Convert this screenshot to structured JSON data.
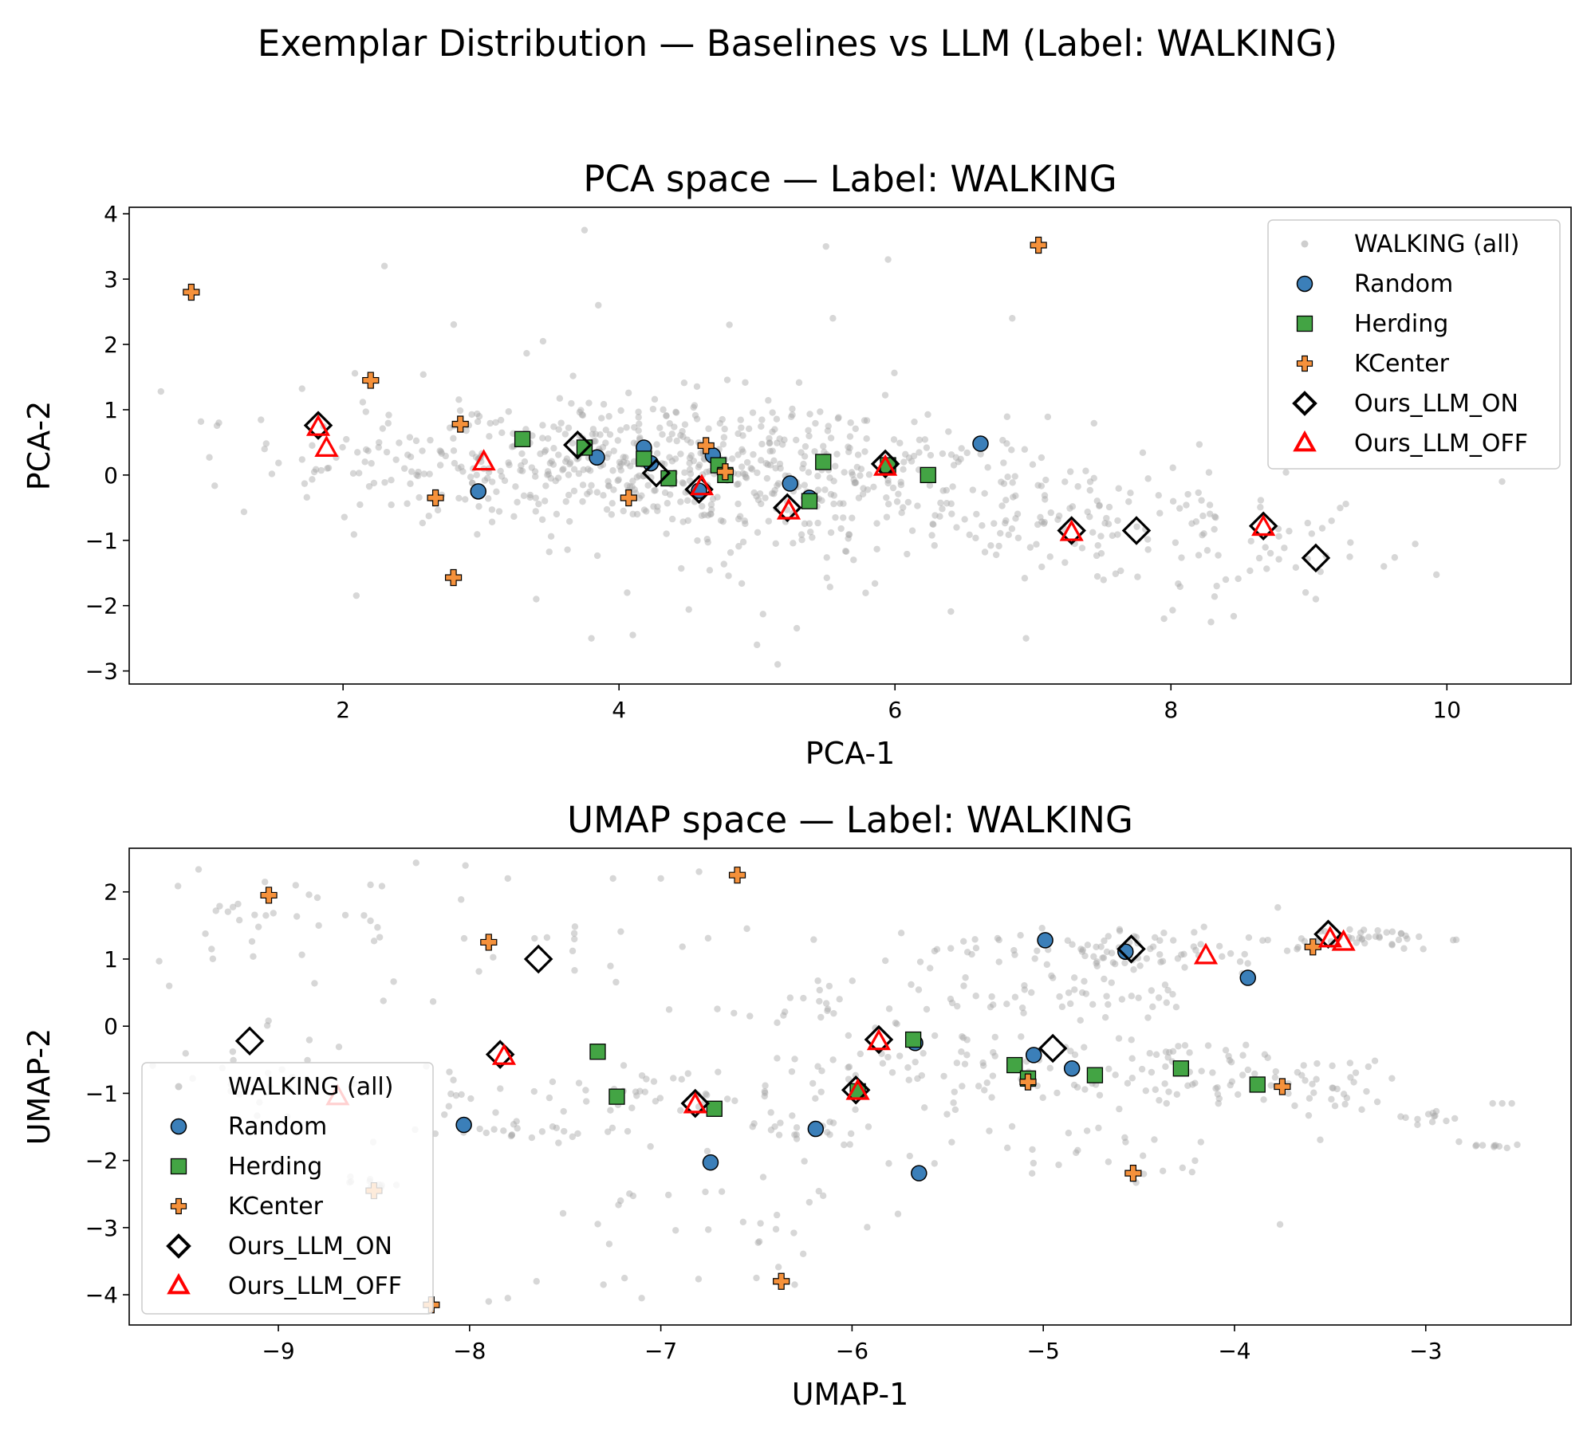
{
  "figure": {
    "suptitle": "Exemplar Distribution — Baselines vs LLM (Label: WALKING)"
  },
  "series_styles": {
    "WALKING (all)": {
      "color": "#a6a6a6",
      "marker": "circle-small"
    },
    "Random": {
      "color": "#3b7fb9",
      "marker": "circle"
    },
    "Herding": {
      "color": "#43a444",
      "marker": "square"
    },
    "KCenter": {
      "color": "#f5913b",
      "marker": "plus"
    },
    "Ours_LLM_ON": {
      "color": "#000000",
      "marker": "diamond-open"
    },
    "Ours_LLM_OFF": {
      "color": "#ff0000",
      "marker": "triangle-open"
    }
  },
  "chart_data": [
    {
      "type": "scatter",
      "title": "PCA space — Label: WALKING",
      "xlabel": "PCA-1",
      "ylabel": "PCA-2",
      "xlim": [
        0.45,
        10.9
      ],
      "ylim": [
        -3.2,
        4.1
      ],
      "xticks": [
        2,
        4,
        6,
        8,
        10
      ],
      "yticks": [
        -3,
        -2,
        -1,
        0,
        1,
        2,
        3,
        4
      ],
      "legend": {
        "position": "upper-right",
        "entries": [
          "WALKING (all)",
          "Random",
          "Herding",
          "KCenter",
          "Ours_LLM_ON",
          "Ours_LLM_OFF"
        ]
      },
      "background": {
        "name": "WALKING (all)",
        "clusters": [
          {
            "cx": 3.8,
            "cy": 0.25,
            "sx": 1.1,
            "sy": 0.5,
            "n": 420
          },
          {
            "cx": 5.5,
            "cy": -0.2,
            "sx": 0.9,
            "sy": 0.5,
            "n": 230
          },
          {
            "cx": 7.2,
            "cy": -0.75,
            "sx": 0.8,
            "sy": 0.5,
            "n": 110
          },
          {
            "cx": 8.8,
            "cy": -1.3,
            "sx": 0.5,
            "sy": 0.35,
            "n": 40
          },
          {
            "cx": 4.5,
            "cy": 0.0,
            "sx": 1.5,
            "sy": 1.3,
            "n": 60
          }
        ],
        "outliers": [
          [
            3.75,
            3.75
          ],
          [
            2.3,
            3.2
          ],
          [
            5.5,
            3.5
          ],
          [
            5.95,
            3.3
          ],
          [
            3.85,
            2.6
          ],
          [
            4.8,
            2.3
          ],
          [
            5.55,
            2.4
          ],
          [
            6.85,
            2.4
          ],
          [
            10.4,
            -0.1
          ],
          [
            1.1,
            0.8
          ],
          [
            5.0,
            -2.6
          ],
          [
            5.15,
            -2.9
          ],
          [
            4.1,
            -2.45
          ],
          [
            3.8,
            -2.5
          ],
          [
            6.95,
            -2.5
          ],
          [
            7.95,
            -2.2
          ],
          [
            9.05,
            -1.9
          ],
          [
            3.4,
            -1.9
          ]
        ]
      },
      "series": [
        {
          "name": "Random",
          "x": [
            2.98,
            3.84,
            4.18,
            4.23,
            4.68,
            4.58,
            5.24,
            5.38,
            6.62
          ],
          "y": [
            -0.25,
            0.27,
            0.42,
            0.18,
            0.3,
            -0.24,
            -0.13,
            -0.35,
            0.48
          ]
        },
        {
          "name": "Herding",
          "x": [
            3.3,
            3.75,
            4.18,
            4.36,
            4.72,
            4.77,
            5.38,
            5.48,
            5.95,
            6.24
          ],
          "y": [
            0.55,
            0.42,
            0.25,
            -0.05,
            0.15,
            0.0,
            -0.4,
            0.2,
            0.15,
            0.0
          ]
        },
        {
          "name": "KCenter",
          "x": [
            0.9,
            2.2,
            2.85,
            2.67,
            2.8,
            4.07,
            4.63,
            4.77,
            7.04
          ],
          "y": [
            2.8,
            1.45,
            0.78,
            -0.35,
            -1.57,
            -0.35,
            0.45,
            0.05,
            3.52
          ]
        },
        {
          "name": "Ours_LLM_ON",
          "x": [
            1.82,
            3.7,
            4.27,
            4.58,
            5.22,
            5.93,
            7.28,
            7.75,
            8.67,
            9.05
          ],
          "y": [
            0.76,
            0.46,
            0.03,
            -0.22,
            -0.5,
            0.17,
            -0.85,
            -0.85,
            -0.78,
            -1.27
          ]
        },
        {
          "name": "Ours_LLM_OFF",
          "x": [
            1.82,
            1.88,
            3.02,
            4.6,
            5.23,
            5.93,
            7.28,
            8.67
          ],
          "y": [
            0.73,
            0.41,
            0.2,
            -0.18,
            -0.55,
            0.12,
            -0.88,
            -0.8
          ]
        }
      ]
    },
    {
      "type": "scatter",
      "title": "UMAP space — Label: WALKING",
      "xlabel": "UMAP-1",
      "ylabel": "UMAP-2",
      "xlim": [
        -9.78,
        -2.24
      ],
      "ylim": [
        -4.45,
        2.65
      ],
      "xticks": [
        -9,
        -8,
        -7,
        -6,
        -5,
        -4,
        -3
      ],
      "yticks": [
        -4,
        -3,
        -2,
        -1,
        0,
        1,
        2
      ],
      "tick_labels_x": [
        "−9",
        "−8",
        "−7",
        "−6",
        "−5",
        "−4",
        "−3"
      ],
      "tick_labels_y": [
        "−4",
        "−3",
        "−2",
        "−1",
        "0",
        "1",
        "2"
      ],
      "legend": {
        "position": "lower-left",
        "entries": [
          "WALKING (all)",
          "Random",
          "Herding",
          "KCenter",
          "Ours_LLM_ON",
          "Ours_LLM_OFF"
        ]
      },
      "background": {
        "name": "WALKING (all)",
        "clusters": [
          {
            "cx": -4.6,
            "cy": 1.15,
            "sx": 0.5,
            "sy": 0.18,
            "n": 90
          },
          {
            "cx": -3.3,
            "cy": 1.3,
            "sx": 0.2,
            "sy": 0.08,
            "n": 40
          },
          {
            "cx": -5.0,
            "cy": 0.45,
            "sx": 0.5,
            "sy": 0.2,
            "n": 50
          },
          {
            "cx": -4.3,
            "cy": -0.7,
            "sx": 0.5,
            "sy": 0.25,
            "n": 80
          },
          {
            "cx": -3.5,
            "cy": -0.85,
            "sx": 0.2,
            "sy": 0.25,
            "n": 30
          },
          {
            "cx": -5.6,
            "cy": -0.5,
            "sx": 0.35,
            "sy": 0.35,
            "n": 50
          },
          {
            "cx": -7.1,
            "cy": -1.0,
            "sx": 0.55,
            "sy": 0.25,
            "n": 60
          },
          {
            "cx": -7.7,
            "cy": -1.6,
            "sx": 0.25,
            "sy": 0.06,
            "n": 20
          },
          {
            "cx": -6.2,
            "cy": -1.5,
            "sx": 0.2,
            "sy": 0.1,
            "n": 20
          },
          {
            "cx": -9.1,
            "cy": 1.7,
            "sx": 0.3,
            "sy": 0.3,
            "n": 25
          },
          {
            "cx": -8.0,
            "cy": 1.3,
            "sx": 0.8,
            "sy": 0.6,
            "n": 35
          },
          {
            "cx": -9.1,
            "cy": -0.8,
            "sx": 0.25,
            "sy": 0.35,
            "n": 25
          },
          {
            "cx": -8.5,
            "cy": -2.35,
            "sx": 0.1,
            "sy": 0.06,
            "n": 12
          },
          {
            "cx": -3.0,
            "cy": -1.35,
            "sx": 0.1,
            "sy": 0.05,
            "n": 12
          },
          {
            "cx": -2.7,
            "cy": -1.8,
            "sx": 0.1,
            "sy": 0.05,
            "n": 10
          },
          {
            "cx": -6.5,
            "cy": -2.7,
            "sx": 0.5,
            "sy": 0.6,
            "n": 35
          },
          {
            "cx": -4.8,
            "cy": -1.8,
            "sx": 0.5,
            "sy": 0.4,
            "n": 30
          },
          {
            "cx": -6.3,
            "cy": 0.2,
            "sx": 0.3,
            "sy": 0.15,
            "n": 20
          }
        ],
        "outliers": [
          [
            -6.8,
            2.3
          ],
          [
            -7.0,
            2.2
          ],
          [
            -7.25,
            2.2
          ],
          [
            -7.8,
            2.2
          ],
          [
            -7.8,
            -4.05
          ],
          [
            -7.9,
            -4.1
          ],
          [
            -7.65,
            -3.8
          ],
          [
            -7.3,
            -3.85
          ],
          [
            -7.1,
            -4.05
          ],
          [
            -6.3,
            -3.85
          ],
          [
            -6.5,
            -3.75
          ],
          [
            -2.55,
            -1.15
          ],
          [
            -2.6,
            -1.15
          ],
          [
            -2.65,
            -1.15
          ]
        ]
      },
      "series": [
        {
          "name": "Random",
          "x": [
            -8.03,
            -6.74,
            -6.19,
            -5.65,
            -5.67,
            -4.99,
            -5.05,
            -4.85,
            -4.57,
            -3.93
          ],
          "y": [
            -1.47,
            -2.03,
            -1.53,
            -2.19,
            -0.25,
            1.28,
            -0.43,
            -0.63,
            1.11,
            0.72
          ]
        },
        {
          "name": "Herding",
          "x": [
            -7.33,
            -7.23,
            -6.72,
            -5.97,
            -5.68,
            -5.15,
            -5.08,
            -4.73,
            -4.28,
            -3.88
          ],
          "y": [
            -0.38,
            -1.05,
            -1.23,
            -0.97,
            -0.2,
            -0.58,
            -0.78,
            -0.73,
            -0.63,
            -0.87
          ]
        },
        {
          "name": "KCenter",
          "x": [
            -9.05,
            -7.9,
            -6.6,
            -6.37,
            -8.2,
            -8.5,
            -5.08,
            -4.53,
            -3.75,
            -3.59
          ],
          "y": [
            1.95,
            1.25,
            2.25,
            -3.8,
            -4.15,
            -2.45,
            -0.83,
            -2.19,
            -0.9,
            1.18
          ]
        },
        {
          "name": "Ours_LLM_ON",
          "x": [
            -9.15,
            -7.64,
            -7.84,
            -6.82,
            -5.98,
            -5.86,
            -4.95,
            -4.54,
            -3.51
          ],
          "y": [
            -0.22,
            1.0,
            -0.42,
            -1.15,
            -0.95,
            -0.2,
            -0.33,
            1.15,
            1.37
          ]
        },
        {
          "name": "Ours_LLM_OFF",
          "x": [
            -8.69,
            -7.82,
            -6.82,
            -5.97,
            -5.86,
            -4.15,
            -3.5,
            -3.43
          ],
          "y": [
            -1.05,
            -0.45,
            -1.17,
            -0.97,
            -0.23,
            1.05,
            1.3,
            1.25
          ]
        }
      ]
    }
  ]
}
